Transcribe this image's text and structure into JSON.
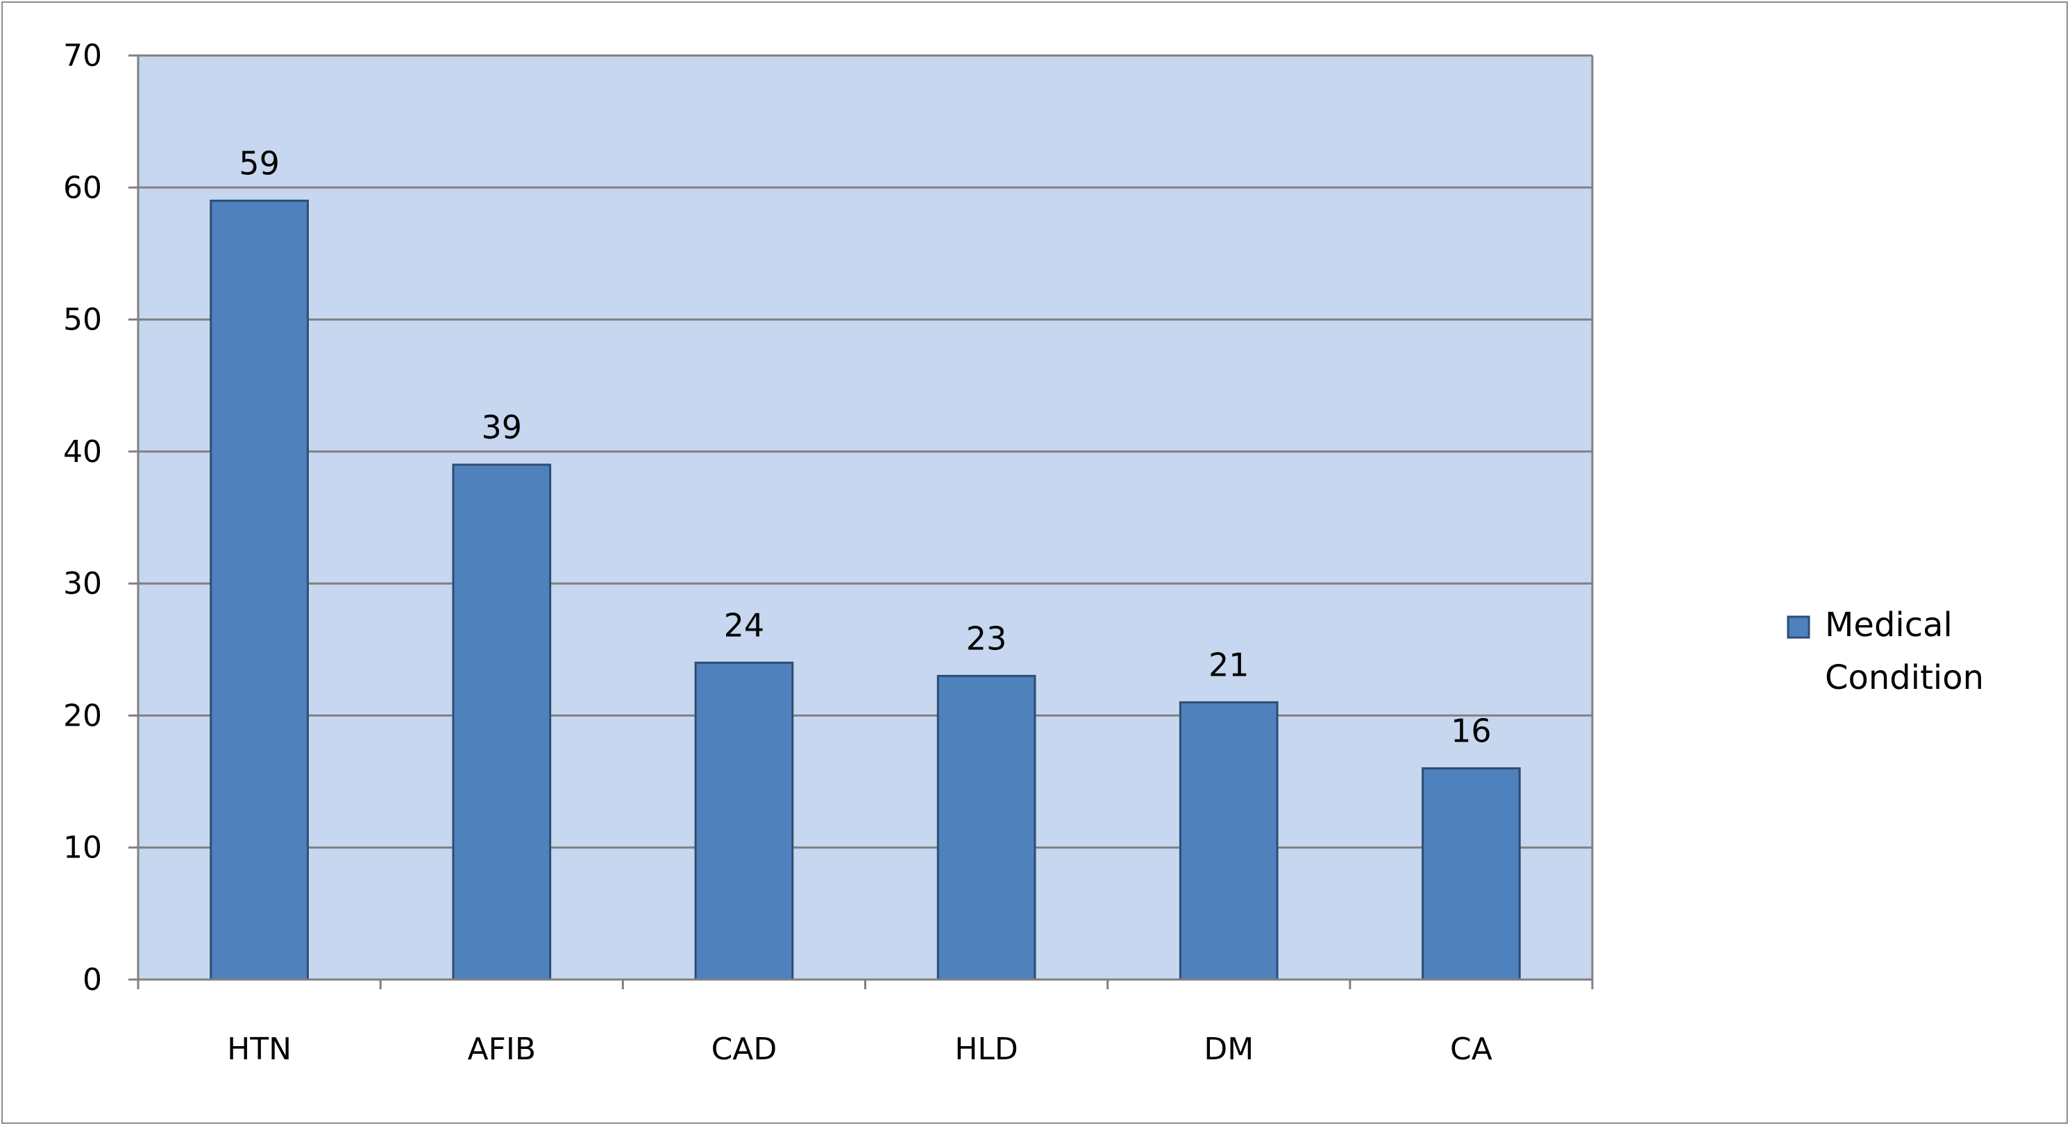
{
  "chart_data": {
    "type": "bar",
    "categories": [
      "HTN",
      "AFIB",
      "CAD",
      "HLD",
      "DM",
      "CA"
    ],
    "series": [
      {
        "name": "Medical Condition",
        "values": [
          59,
          39,
          24,
          23,
          21,
          16
        ]
      }
    ],
    "ylim": [
      0,
      70
    ],
    "yticks": [
      0,
      10,
      20,
      30,
      40,
      50,
      60,
      70
    ],
    "grid": true,
    "legend_position": "right",
    "data_labels": true,
    "colors": {
      "bar_fill": "#4f81bd",
      "bar_stroke": "#2c4d75",
      "plot_background": "#c6d7ef",
      "gridline": "#808080",
      "axis": "#808080"
    }
  }
}
